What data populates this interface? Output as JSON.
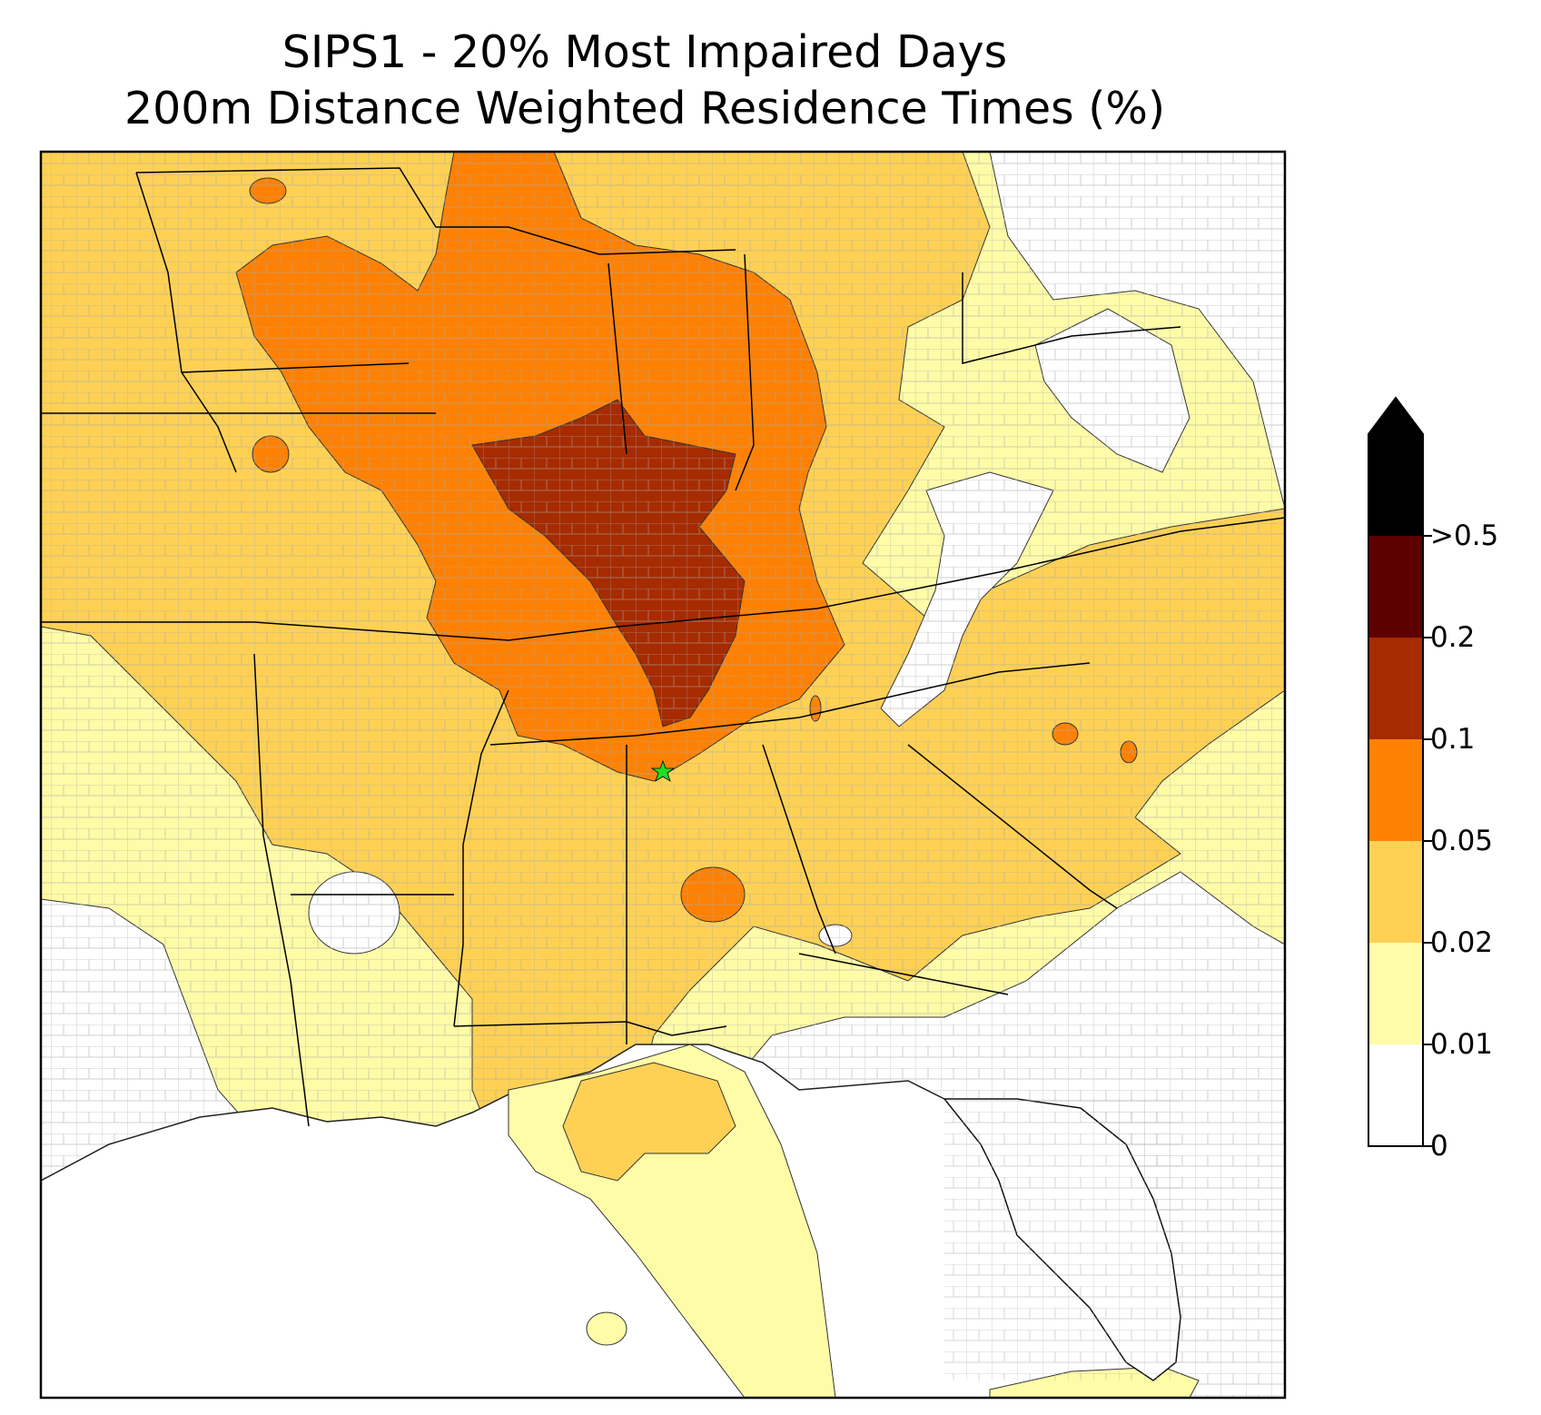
{
  "title_line1": "SIPS1 - 20% Most Impaired Days",
  "title_line2": "200m Distance Weighted Residence Times (%)",
  "colorbar": {
    "levels": [
      {
        "label": "0",
        "value": 0,
        "color": "#ffffff"
      },
      {
        "label": "0.01",
        "value": 0.01,
        "color": "#fffca8"
      },
      {
        "label": "0.02",
        "value": 0.02,
        "color": "#fed155"
      },
      {
        "label": "0.05",
        "value": 0.05,
        "color": "#fe8103"
      },
      {
        "label": "0.1",
        "value": 0.1,
        "color": "#a62b00"
      },
      {
        "label": "0.2",
        "value": 0.2,
        "color": "#5c0000"
      },
      {
        "label": ">0.5",
        "value": 0.5,
        "color": "#000000"
      }
    ],
    "extend": "max"
  },
  "source_marker": {
    "shape": "star",
    "color": "#22dd22"
  },
  "line_colors": {
    "state": "#000000",
    "county": "#a0a0a0"
  }
}
